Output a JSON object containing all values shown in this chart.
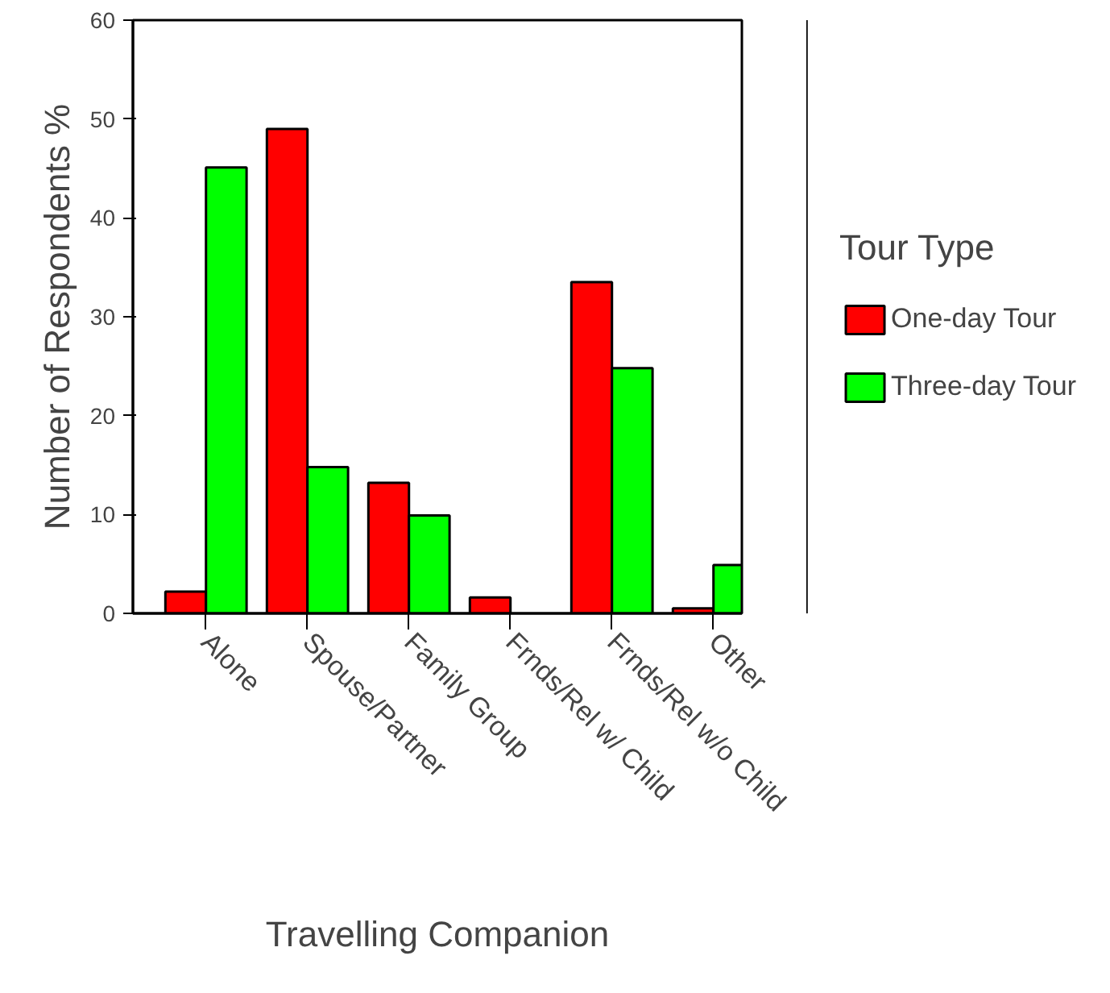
{
  "chart_data": {
    "type": "bar",
    "xlabel": "Travelling Companion",
    "ylabel": "Number of Respondents %",
    "legend_title": "Tour Type",
    "categories": [
      "Alone",
      "Spouse/Partner",
      "Family Group",
      "Frnds/Rel w/ Child",
      "Frnds/Rel w/o Child",
      "Other"
    ],
    "series": [
      {
        "name": "One-day Tour",
        "color": "#ff0000",
        "values": [
          2.2,
          49,
          13.2,
          1.6,
          33.5,
          0.5
        ]
      },
      {
        "name": "Three-day Tour",
        "color": "#00ff00",
        "values": [
          45.1,
          14.8,
          9.9,
          null,
          24.8,
          4.9
        ]
      }
    ],
    "ylim": [
      0,
      60
    ],
    "yticks": [
      0,
      10,
      20,
      30,
      40,
      50,
      60
    ],
    "grid": false,
    "legend": "right"
  }
}
